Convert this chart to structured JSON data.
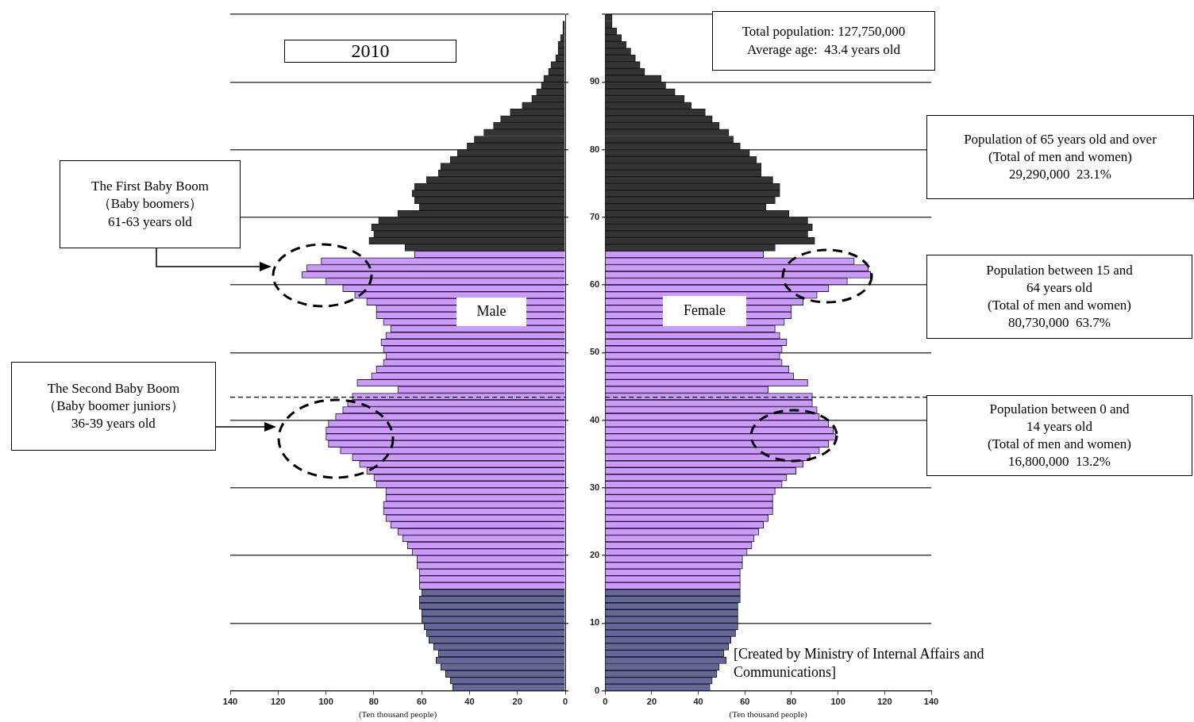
{
  "chart_data": [
    {
      "type": "bar",
      "title": "2010",
      "orientation": "horizontal",
      "xlabel": "(Ten thousand people)",
      "x": [
        99.5,
        98.5,
        97.5,
        96.5,
        95.5,
        94.5,
        93.5,
        92.5,
        91.5,
        90.5,
        89.5,
        88.5,
        87.5,
        86.5,
        85.5,
        84.5,
        83.5,
        82.5,
        81.5,
        80.5,
        79.5,
        78.5,
        77.5,
        76.5,
        75.5,
        74.5,
        73.5,
        72.5,
        71.5,
        70.5,
        69.5,
        68.5,
        67.5,
        66.5,
        65.5,
        64.5,
        63.5,
        62.5,
        61.5,
        60.5,
        59.5,
        58.5,
        57.5,
        56.5,
        55.5,
        54.5,
        53.5,
        52.5,
        51.5,
        50.5,
        49.5,
        48.5,
        47.5,
        46.5,
        45.5,
        44.5,
        43.5,
        42.5,
        41.5,
        40.5,
        39.5,
        38.5,
        37.5,
        36.5,
        35.5,
        34.5,
        33.5,
        32.5,
        31.5,
        30.5,
        29.5,
        28.5,
        27.5,
        26.5,
        25.5,
        24.5,
        23.5,
        22.5,
        21.5,
        20.5,
        19.5,
        18.5,
        17.5,
        16.5,
        15.5,
        14.5,
        13.5,
        12.5,
        11.5,
        10.5,
        9.5,
        8.5,
        7.5,
        6.5,
        5.5,
        4.5,
        3.5,
        2.5,
        1.5,
        0.5
      ],
      "values": [
        0,
        1,
        1,
        2,
        3,
        3,
        4,
        6,
        7,
        9,
        10,
        12,
        14,
        18,
        23,
        27,
        30,
        34,
        38,
        41,
        45,
        48,
        52,
        53,
        58,
        63,
        64,
        63,
        61,
        70,
        78,
        81,
        80,
        82,
        67,
        63,
        102,
        108,
        110,
        100,
        93,
        88,
        83,
        79,
        79,
        76,
        73,
        75,
        77,
        76,
        75,
        76,
        79,
        81,
        87,
        70,
        89,
        91,
        93,
        96,
        99,
        100,
        100,
        99,
        94,
        89,
        86,
        83,
        80,
        79,
        75,
        75,
        76,
        76,
        75,
        73,
        70,
        68,
        66,
        64,
        62,
        62,
        61,
        61,
        61,
        60,
        61,
        61,
        60,
        60,
        59,
        58,
        57,
        55,
        53,
        54,
        52,
        50,
        48,
        47
      ],
      "colors": [
        "#333333",
        "#333333",
        "#333333",
        "#333333",
        "#333333",
        "#333333",
        "#333333",
        "#333333",
        "#333333",
        "#333333",
        "#333333",
        "#333333",
        "#333333",
        "#333333",
        "#333333",
        "#333333",
        "#333333",
        "#333333",
        "#333333",
        "#333333",
        "#333333",
        "#333333",
        "#333333",
        "#333333",
        "#333333",
        "#333333",
        "#333333",
        "#333333",
        "#333333",
        "#333333",
        "#333333",
        "#333333",
        "#333333",
        "#333333",
        "#333333",
        "#cc99ff",
        "#cc99ff",
        "#cc99ff",
        "#cc99ff",
        "#cc99ff",
        "#cc99ff",
        "#cc99ff",
        "#cc99ff",
        "#cc99ff",
        "#cc99ff",
        "#cc99ff",
        "#cc99ff",
        "#cc99ff",
        "#cc99ff",
        "#cc99ff",
        "#cc99ff",
        "#cc99ff",
        "#cc99ff",
        "#cc99ff",
        "#cc99ff",
        "#cc99ff",
        "#cc99ff",
        "#cc99ff",
        "#cc99ff",
        "#cc99ff",
        "#cc99ff",
        "#cc99ff",
        "#cc99ff",
        "#cc99ff",
        "#cc99ff",
        "#cc99ff",
        "#cc99ff",
        "#cc99ff",
        "#cc99ff",
        "#cc99ff",
        "#cc99ff",
        "#cc99ff",
        "#cc99ff",
        "#cc99ff",
        "#cc99ff",
        "#cc99ff",
        "#cc99ff",
        "#cc99ff",
        "#cc99ff",
        "#cc99ff",
        "#cc99ff",
        "#cc99ff",
        "#cc99ff",
        "#cc99ff",
        "#cc99ff",
        "#65679a",
        "#65679a",
        "#65679a",
        "#65679a",
        "#65679a",
        "#65679a",
        "#65679a",
        "#65679a",
        "#65679a",
        "#65679a",
        "#65679a",
        "#65679a",
        "#65679a",
        "#65679a",
        "#65679a"
      ],
      "xlim": [
        140,
        0
      ],
      "xticks": [
        0,
        20,
        40,
        60,
        80,
        100,
        120,
        140
      ],
      "ylim": [
        0,
        100
      ],
      "yticks": [
        0,
        10,
        20,
        30,
        40,
        50,
        60,
        70,
        80,
        90,
        {
          "value": 100,
          "label": null
        }
      ],
      "grid": "y",
      "tick_labels": "x",
      "ref_lines": [
        {
          "axis": "y",
          "value": 43.4,
          "line_style": "dashed"
        }
      ],
      "annotations": [
        "The First Baby Boom\n（Baby boomers）\n61-63 years old",
        "The Second Baby Boom\n（Baby boomer juniors）\n36-39 years old",
        "Male"
      ]
    },
    {
      "type": "bar",
      "orientation": "horizontal",
      "xlabel": "(Ten thousand people)",
      "x": [
        99.5,
        98.5,
        97.5,
        96.5,
        95.5,
        94.5,
        93.5,
        92.5,
        91.5,
        90.5,
        89.5,
        88.5,
        87.5,
        86.5,
        85.5,
        84.5,
        83.5,
        82.5,
        81.5,
        80.5,
        79.5,
        78.5,
        77.5,
        76.5,
        75.5,
        74.5,
        73.5,
        72.5,
        71.5,
        70.5,
        69.5,
        68.5,
        67.5,
        66.5,
        65.5,
        64.5,
        63.5,
        62.5,
        61.5,
        60.5,
        59.5,
        58.5,
        57.5,
        56.5,
        55.5,
        54.5,
        53.5,
        52.5,
        51.5,
        50.5,
        49.5,
        48.5,
        47.5,
        46.5,
        45.5,
        44.5,
        43.5,
        42.5,
        41.5,
        40.5,
        39.5,
        38.5,
        37.5,
        36.5,
        35.5,
        34.5,
        33.5,
        32.5,
        31.5,
        30.5,
        29.5,
        28.5,
        27.5,
        26.5,
        25.5,
        24.5,
        23.5,
        22.5,
        21.5,
        20.5,
        19.5,
        18.5,
        17.5,
        16.5,
        15.5,
        14.5,
        13.5,
        12.5,
        11.5,
        10.5,
        9.5,
        8.5,
        7.5,
        6.5,
        5.5,
        4.5,
        3.5,
        2.5,
        1.5,
        0.5
      ],
      "values": [
        3,
        3,
        5,
        7,
        9,
        11,
        13,
        15,
        17,
        24,
        26,
        30,
        34,
        37,
        43,
        46,
        49,
        53,
        55,
        58,
        62,
        65,
        67,
        67,
        72,
        75,
        75,
        73,
        69,
        79,
        87,
        89,
        87,
        90,
        73,
        68,
        107,
        113,
        114,
        104,
        96,
        91,
        85,
        80,
        80,
        77,
        73,
        75,
        78,
        76,
        75,
        76,
        79,
        81,
        87,
        70,
        89,
        89,
        91,
        92,
        96,
        98,
        99,
        96,
        92,
        88,
        85,
        82,
        78,
        76,
        73,
        72,
        72,
        72,
        70,
        68,
        66,
        64,
        63,
        61,
        59,
        59,
        58,
        58,
        58,
        58,
        58,
        57,
        57,
        57,
        57,
        56,
        54,
        53,
        51,
        52,
        49,
        48,
        46,
        45
      ],
      "colors": [
        "#333333",
        "#333333",
        "#333333",
        "#333333",
        "#333333",
        "#333333",
        "#333333",
        "#333333",
        "#333333",
        "#333333",
        "#333333",
        "#333333",
        "#333333",
        "#333333",
        "#333333",
        "#333333",
        "#333333",
        "#333333",
        "#333333",
        "#333333",
        "#333333",
        "#333333",
        "#333333",
        "#333333",
        "#333333",
        "#333333",
        "#333333",
        "#333333",
        "#333333",
        "#333333",
        "#333333",
        "#333333",
        "#333333",
        "#333333",
        "#333333",
        "#cc99ff",
        "#cc99ff",
        "#cc99ff",
        "#cc99ff",
        "#cc99ff",
        "#cc99ff",
        "#cc99ff",
        "#cc99ff",
        "#cc99ff",
        "#cc99ff",
        "#cc99ff",
        "#cc99ff",
        "#cc99ff",
        "#cc99ff",
        "#cc99ff",
        "#cc99ff",
        "#cc99ff",
        "#cc99ff",
        "#cc99ff",
        "#cc99ff",
        "#cc99ff",
        "#cc99ff",
        "#cc99ff",
        "#cc99ff",
        "#cc99ff",
        "#cc99ff",
        "#cc99ff",
        "#cc99ff",
        "#cc99ff",
        "#cc99ff",
        "#cc99ff",
        "#cc99ff",
        "#cc99ff",
        "#cc99ff",
        "#cc99ff",
        "#cc99ff",
        "#cc99ff",
        "#cc99ff",
        "#cc99ff",
        "#cc99ff",
        "#cc99ff",
        "#cc99ff",
        "#cc99ff",
        "#cc99ff",
        "#cc99ff",
        "#cc99ff",
        "#cc99ff",
        "#cc99ff",
        "#cc99ff",
        "#cc99ff",
        "#65679a",
        "#65679a",
        "#65679a",
        "#65679a",
        "#65679a",
        "#65679a",
        "#65679a",
        "#65679a",
        "#65679a",
        "#65679a",
        "#65679a",
        "#65679a",
        "#65679a",
        "#65679a",
        "#65679a"
      ],
      "xlim": [
        0,
        140
      ],
      "xticks": [
        0,
        20,
        40,
        60,
        80,
        100,
        120,
        140
      ],
      "ylim": [
        0,
        100
      ],
      "yticks": [
        0,
        10,
        20,
        30,
        40,
        50,
        60,
        70,
        80,
        90,
        {
          "value": 100,
          "label": null
        }
      ],
      "grid": "y",
      "ref_lines": [
        {
          "axis": "y",
          "value": 43.4,
          "line_style": "dashed"
        }
      ],
      "annotations": [
        "Total population: 127,750,000\nAverage age:  43.4 years old",
        "Population of 65 years old and over\n(Total of men and women)\n29,290,000  23.1%",
        "Population between 15 and\n64 years old\n(Total of men and women)\n80,730,000  63.7%",
        "Population between 0 and\n14 years old\n(Total of men and women)\n16,800,000  13.2%",
        "Female",
        "[Created by Ministry of Internal Affairs and\nCommunications]"
      ]
    }
  ]
}
